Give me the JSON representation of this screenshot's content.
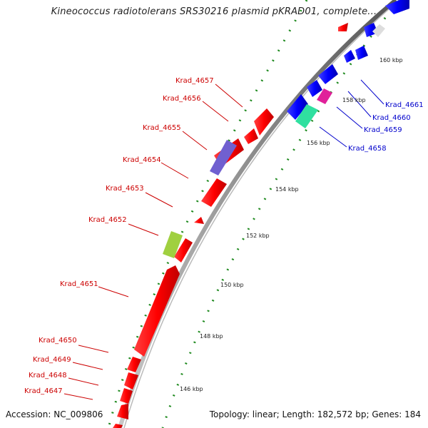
{
  "title": "Kineococcus radiotolerans SRS30216 plasmid pKRAD01, complete...",
  "footer": {
    "accession": "Accession: NC_009806",
    "summary": "Topology: linear; Length: 182,572 bp; Genes: 184"
  },
  "ticks": [
    "146 kbp",
    "148 kbp",
    "150 kbp",
    "152 kbp",
    "154 kbp",
    "156 kbp",
    "158 kbp",
    "160 kbp"
  ],
  "genes": [
    {
      "label": "Krad_4657",
      "color": "#cc0000"
    },
    {
      "label": "Krad_4656",
      "color": "#cc0000"
    },
    {
      "label": "Krad_4655",
      "color": "#cc0000"
    },
    {
      "label": "Krad_4654",
      "color": "#cc0000"
    },
    {
      "label": "Krad_4653",
      "color": "#cc0000"
    },
    {
      "label": "Krad_4652",
      "color": "#cc0000"
    },
    {
      "label": "Krad_4651",
      "color": "#cc0000"
    },
    {
      "label": "Krad_4650",
      "color": "#cc0000"
    },
    {
      "label": "Krad_4649",
      "color": "#cc0000"
    },
    {
      "label": "Krad_4648",
      "color": "#cc0000"
    },
    {
      "label": "Krad_4647",
      "color": "#cc0000"
    },
    {
      "label": "Krad_4661",
      "color": "#0000cc"
    },
    {
      "label": "Krad_4660",
      "color": "#0000cc"
    },
    {
      "label": "Krad_4659",
      "color": "#0000cc"
    },
    {
      "label": "Krad_4658",
      "color": "#0000cc"
    }
  ],
  "colors": {
    "forward_cds": "#ff0000",
    "reverse_cds": "#0000ff",
    "backbone": "#8a8a8a",
    "gc_dots": "#1f8a1f",
    "cog_purple": "#7060d0",
    "cog_green": "#a0d040",
    "cog_magenta": "#e0209a",
    "cog_teal": "#30e0a0"
  }
}
